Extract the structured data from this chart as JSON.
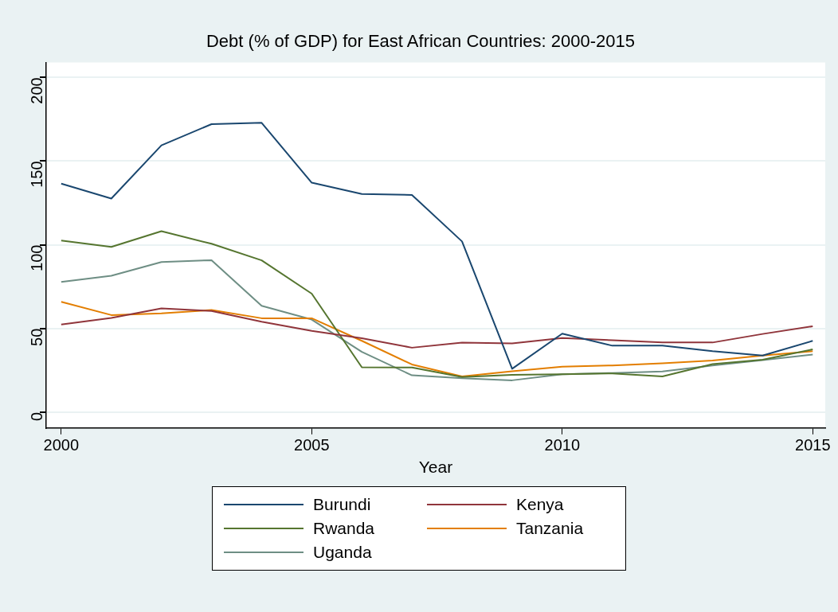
{
  "chart_data": {
    "type": "line",
    "title": "Debt (% of GDP) for East African Countries: 2000-2015",
    "xlabel": "Year",
    "x": [
      2000,
      2001,
      2002,
      2003,
      2004,
      2005,
      2006,
      2007,
      2008,
      2009,
      2010,
      2011,
      2012,
      2013,
      2014,
      2015
    ],
    "series": [
      {
        "name": "Burundi",
        "color": "#1a476f",
        "values": [
          136.5,
          127.6,
          159.4,
          172.1,
          172.9,
          137.1,
          130.4,
          129.8,
          102,
          25.9,
          46.9,
          39.7,
          39.7,
          36.4,
          33.8,
          42.6
        ]
      },
      {
        "name": "Kenya",
        "color": "#90353b",
        "values": [
          52.3,
          56.3,
          62,
          60.4,
          54,
          48.5,
          44.2,
          38.5,
          41.5,
          41.1,
          44.3,
          43,
          41.6,
          41.6,
          46.7,
          51.3
        ]
      },
      {
        "name": "Rwanda",
        "color": "#55752f",
        "values": [
          102.5,
          98.7,
          108.1,
          100.6,
          90.7,
          70.8,
          26.8,
          26.7,
          21,
          22.3,
          22.6,
          23.1,
          21.3,
          28.7,
          31.3,
          37.5
        ]
      },
      {
        "name": "Tanzania",
        "color": "#e37e00",
        "values": [
          65.9,
          58,
          59,
          61,
          56.1,
          56.1,
          42.6,
          28.5,
          21.3,
          24.4,
          27.2,
          27.9,
          29.2,
          30.8,
          33.8,
          36.4
        ]
      },
      {
        "name": "Uganda",
        "color": "#6e8e84",
        "values": [
          77.8,
          81.5,
          89.7,
          90.8,
          63.5,
          55.3,
          36,
          22,
          20.3,
          19,
          22.6,
          23.4,
          24.3,
          27.9,
          31.1,
          34.4
        ]
      }
    ],
    "xlim": [
      1999.7,
      2015.25
    ],
    "xticks": [
      2000,
      2005,
      2010,
      2015
    ],
    "ylim": [
      -9.5,
      209
    ],
    "yticks": [
      0,
      50,
      100,
      150,
      200
    ],
    "grid": "y",
    "legend": "bottom",
    "marker": "none",
    "line_style": "solid"
  }
}
